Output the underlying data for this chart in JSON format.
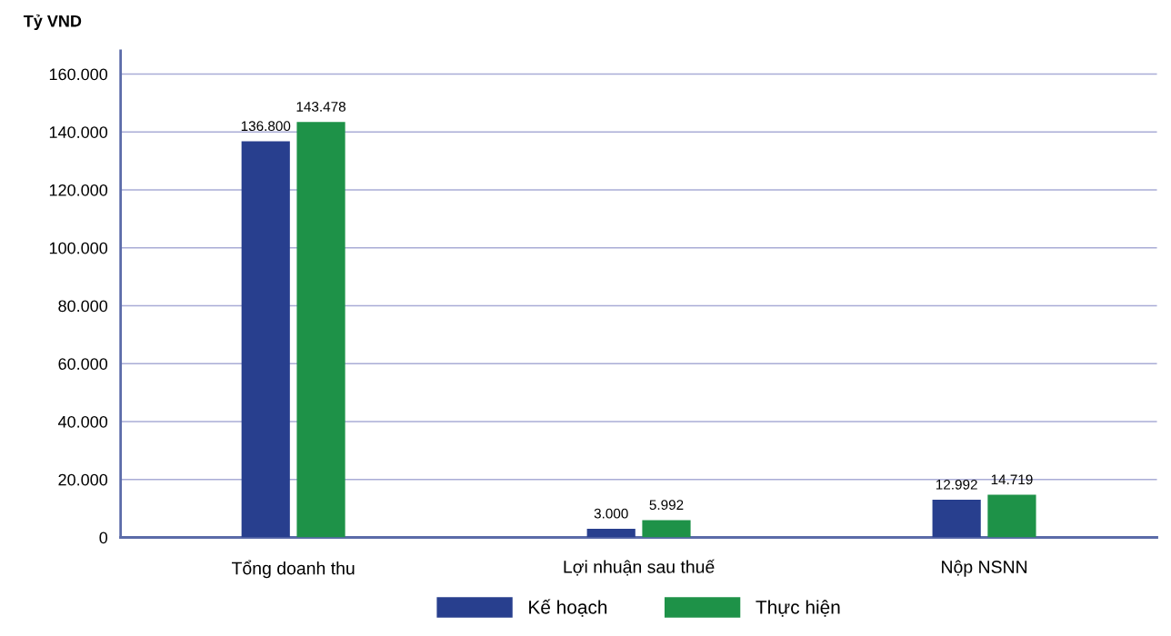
{
  "chart_data": {
    "type": "bar",
    "ylabel": "Tỷ VND",
    "categories": [
      "Tổng doanh thu",
      "Lợi nhuận sau thuế",
      "Nộp NSNN"
    ],
    "series": [
      {
        "name": "Kế hoạch",
        "color": "#283f8e",
        "values": [
          136800,
          3000,
          12992
        ],
        "value_labels": [
          "136.800",
          "3.000",
          "12.992"
        ]
      },
      {
        "name": "Thực hiện",
        "color": "#1e9248",
        "values": [
          143478,
          5992,
          14719
        ],
        "value_labels": [
          "143.478",
          "5.992",
          "14.719"
        ]
      }
    ],
    "ylim": [
      0,
      168000
    ],
    "yticks": [
      0,
      {
        "value": 20000,
        "label": "20.000"
      },
      {
        "value": 40000,
        "label": "40.000"
      },
      {
        "value": 60000,
        "label": "60.000"
      },
      {
        "value": 80000,
        "label": "80.000"
      },
      {
        "value": 100000,
        "label": "100.000"
      },
      {
        "value": 120000,
        "label": "120.000"
      },
      {
        "value": 140000,
        "label": "140.000"
      },
      {
        "value": 160000,
        "label": "160.000"
      }
    ],
    "grid": "y",
    "legend": "bottom"
  }
}
